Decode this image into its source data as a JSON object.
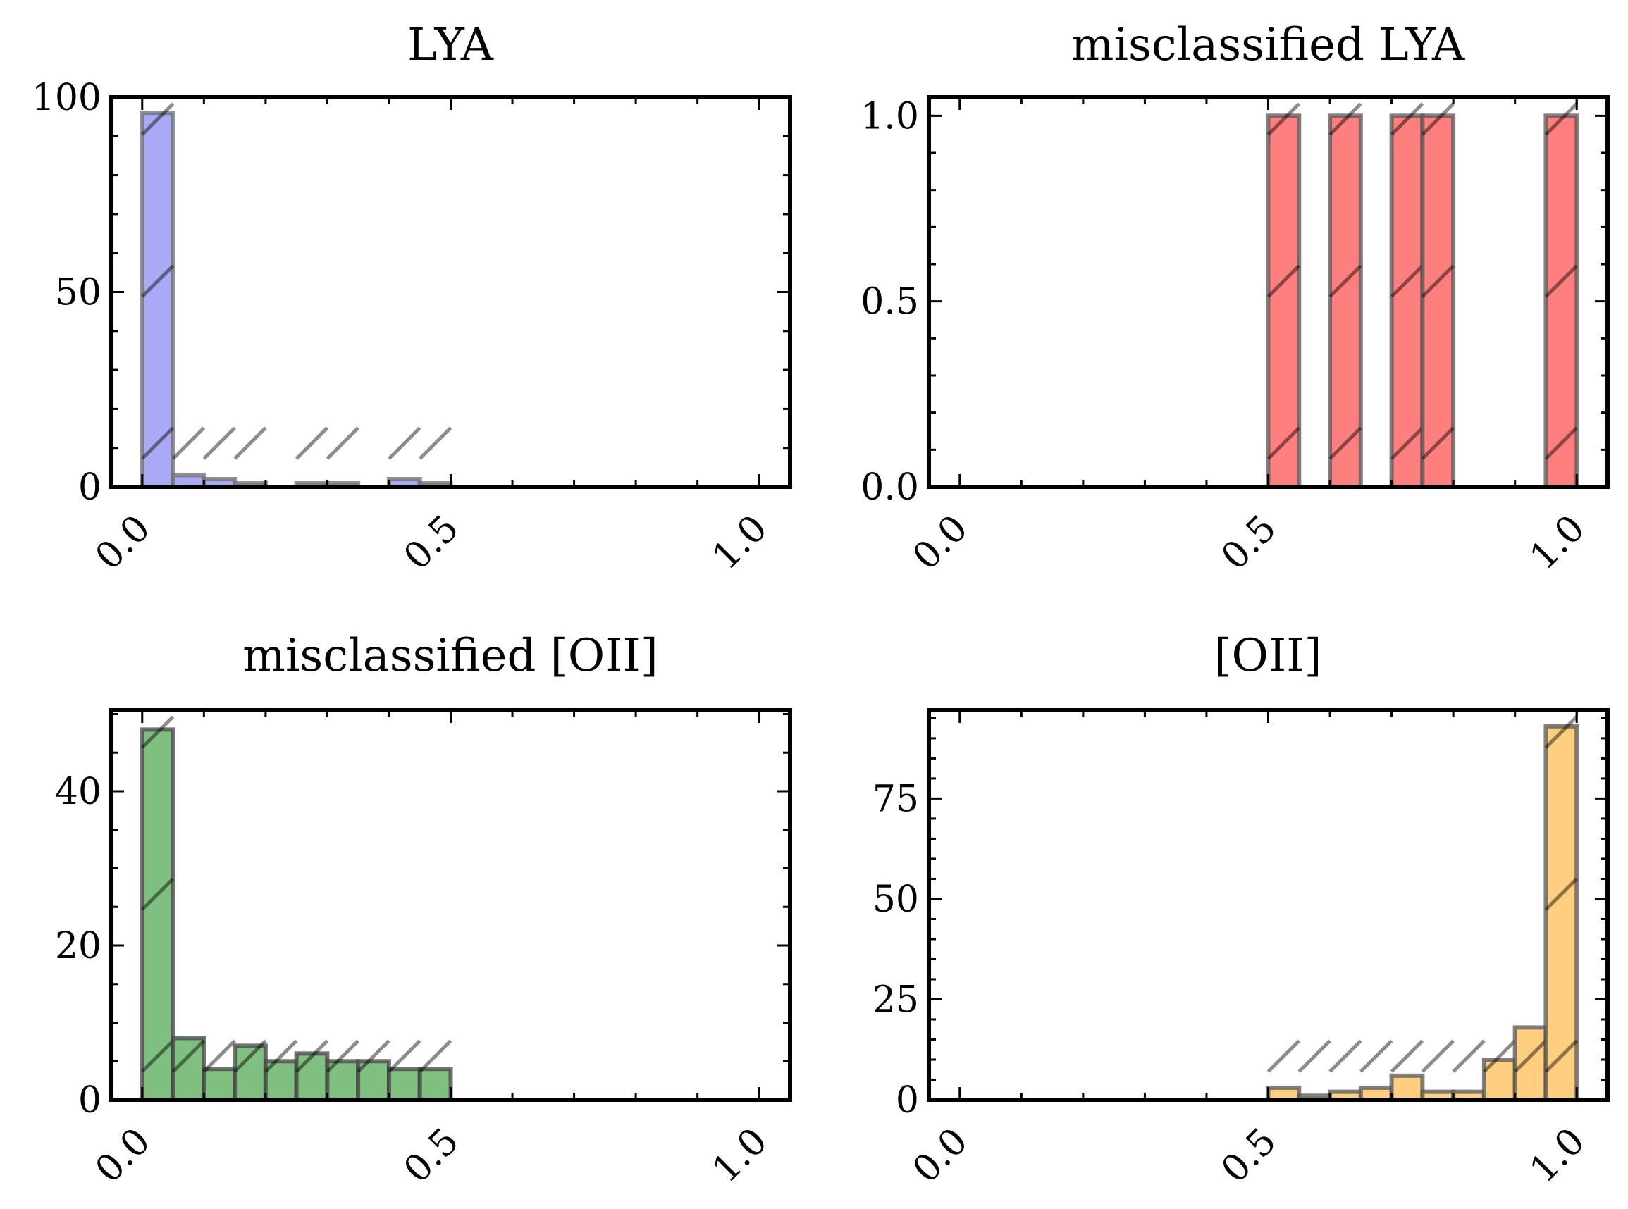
{
  "figure": {
    "layout": "2x2 grid of histograms"
  },
  "chart_data": [
    {
      "type": "bar",
      "title": "LYA",
      "xlabel": "",
      "ylabel": "",
      "color": "#a9a9f5",
      "edge_color": "#6e6e6e",
      "hatch": true,
      "bin_edges": [
        0.0,
        0.05,
        0.1,
        0.15,
        0.2,
        0.25,
        0.3,
        0.35,
        0.4,
        0.45,
        0.5
      ],
      "values": [
        96,
        3,
        2,
        1,
        0,
        1,
        1,
        0,
        2,
        1
      ],
      "xlim": [
        -0.05,
        1.05
      ],
      "ylim": [
        0,
        100
      ],
      "xticks": [
        "0.0",
        "0.5",
        "1.0"
      ],
      "xtick_values": [
        0.0,
        0.5,
        1.0
      ],
      "yticks": [
        "0",
        "50",
        "100"
      ],
      "ytick_values": [
        0,
        50,
        100
      ],
      "y_minor_step": 10,
      "grid": false,
      "legend": "none"
    },
    {
      "type": "bar",
      "title": "misclassified LYA",
      "xlabel": "",
      "ylabel": "",
      "color": "#ff7f7f",
      "edge_color": "#555555",
      "hatch": true,
      "bin_edges": [
        0.5,
        0.55,
        0.6,
        0.65,
        0.7,
        0.75,
        0.8,
        0.85,
        0.9,
        0.95,
        1.0
      ],
      "values": [
        1,
        0,
        1,
        0,
        1,
        1,
        0,
        0,
        0,
        1
      ],
      "xlim": [
        -0.05,
        1.05
      ],
      "ylim": [
        0,
        1.05
      ],
      "xticks": [
        "0.0",
        "0.5",
        "1.0"
      ],
      "xtick_values": [
        0.0,
        0.5,
        1.0
      ],
      "yticks": [
        "0.0",
        "0.5",
        "1.0"
      ],
      "ytick_values": [
        0.0,
        0.5,
        1.0
      ],
      "y_minor_step": 0.1,
      "grid": false,
      "legend": "none"
    },
    {
      "type": "bar",
      "title": "misclassified [OII]",
      "xlabel": "",
      "ylabel": "",
      "color": "#7fbf7f",
      "edge_color": "#444444",
      "hatch": true,
      "bin_edges": [
        0.0,
        0.05,
        0.1,
        0.15,
        0.2,
        0.25,
        0.3,
        0.35,
        0.4,
        0.45,
        0.5
      ],
      "values": [
        48,
        8,
        4,
        7,
        5,
        6,
        5,
        5,
        4,
        4
      ],
      "xlim": [
        -0.05,
        1.05
      ],
      "ylim": [
        0,
        50.5
      ],
      "xticks": [
        "0.0",
        "0.5",
        "1.0"
      ],
      "xtick_values": [
        0.0,
        0.5,
        1.0
      ],
      "yticks": [
        "0",
        "20",
        "40"
      ],
      "ytick_values": [
        0,
        20,
        40
      ],
      "y_minor_step": 5,
      "grid": false,
      "legend": "none"
    },
    {
      "type": "bar",
      "title": "[OII]",
      "xlabel": "",
      "ylabel": "",
      "color": "#ffcf7f",
      "edge_color": "#555555",
      "hatch": true,
      "bin_edges": [
        0.5,
        0.55,
        0.6,
        0.65,
        0.7,
        0.75,
        0.8,
        0.85,
        0.9,
        0.95,
        1.0
      ],
      "values": [
        3,
        1,
        2,
        3,
        6,
        2,
        2,
        10,
        18,
        93
      ],
      "xlim": [
        -0.05,
        1.05
      ],
      "ylim": [
        0,
        97
      ],
      "xticks": [
        "0.0",
        "0.5",
        "1.0"
      ],
      "xtick_values": [
        0.0,
        0.5,
        1.0
      ],
      "yticks": [
        "0",
        "25",
        "50",
        "75"
      ],
      "ytick_values": [
        0,
        25,
        50,
        75
      ],
      "y_minor_step": 5,
      "grid": false,
      "legend": "none"
    }
  ]
}
